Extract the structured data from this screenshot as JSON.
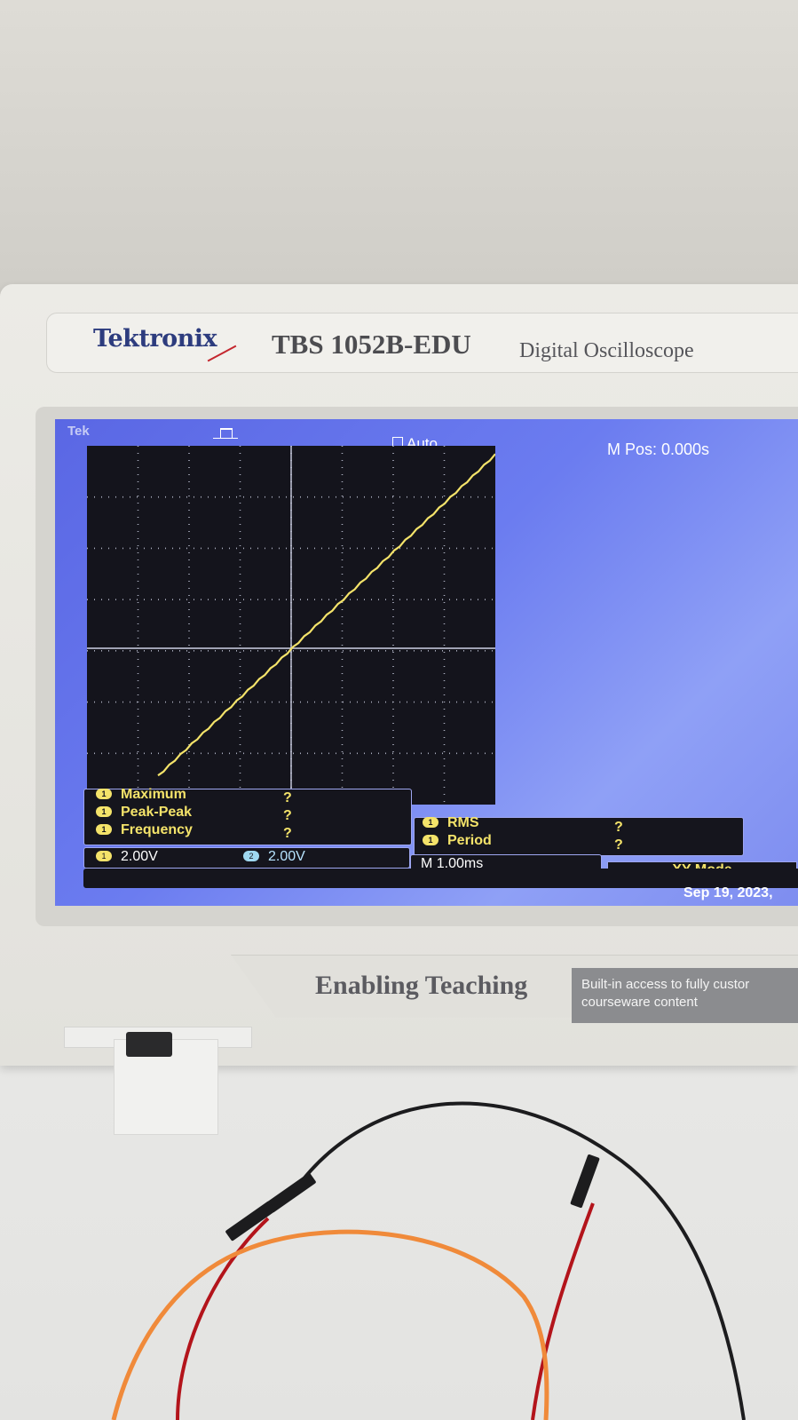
{
  "instrument": {
    "brand": "Tektronix",
    "model": "TBS 1052B-EDU",
    "description": "Digital Oscilloscope"
  },
  "screen": {
    "tek_label": "Tek",
    "trigger_mode": "Auto",
    "m_pos": "M Pos: 0.000s",
    "measurements_left": [
      {
        "label": "Maximum",
        "value": "?"
      },
      {
        "label": "Peak-Peak",
        "value": "?"
      },
      {
        "label": "Frequency",
        "value": "?"
      }
    ],
    "measurements_right": [
      {
        "label": "RMS",
        "value": "?"
      },
      {
        "label": "Period",
        "value": "?"
      }
    ],
    "channel_1_scale": "2.00V",
    "channel_2_scale": "2.00V",
    "channel_1_badge": "1",
    "channel_2_badge": "2",
    "timebase": "M 1.00ms",
    "display_mode": "XY Mode",
    "date": "Sep 19, 2023,",
    "trace_color": "#f4e36a"
  },
  "panel": {
    "slogan": "Enabling Teaching",
    "subtext": "Built-in access to fully custor courseware content"
  }
}
